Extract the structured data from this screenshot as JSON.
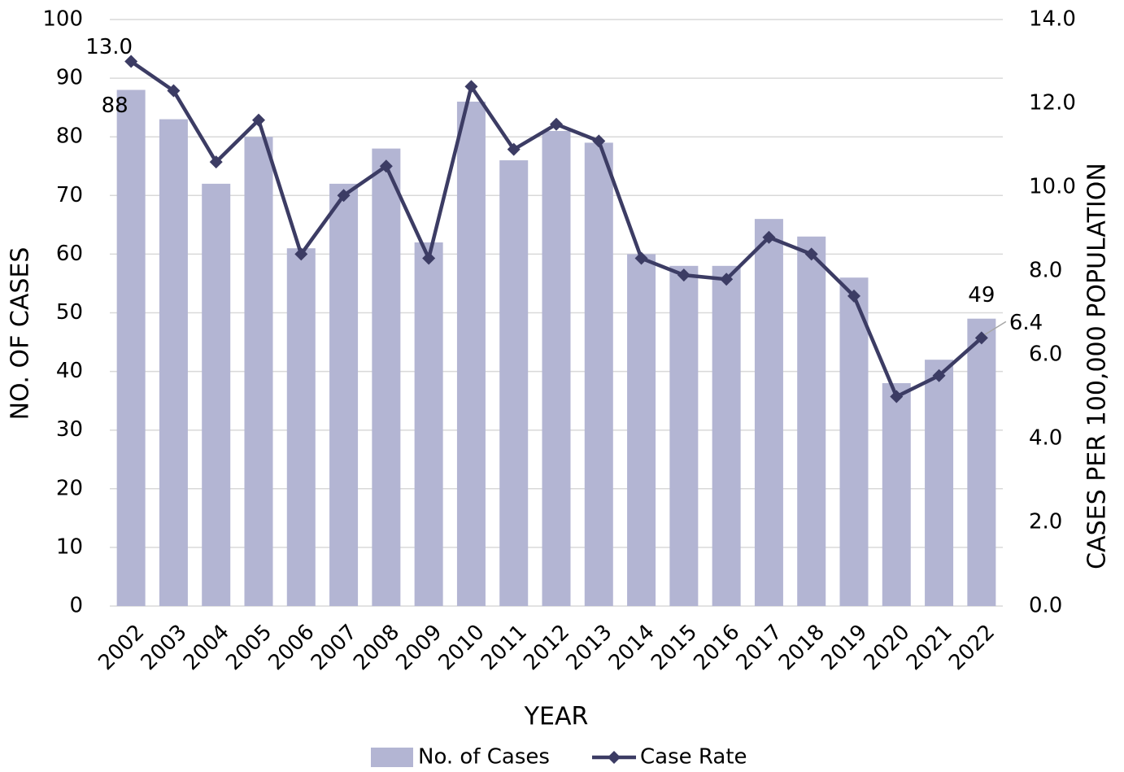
{
  "chart_data": {
    "type": "bar_line",
    "categories": [
      "2002",
      "2003",
      "2004",
      "2005",
      "2006",
      "2007",
      "2008",
      "2009",
      "2010",
      "2011",
      "2012",
      "2013",
      "2014",
      "2015",
      "2016",
      "2017",
      "2018",
      "2019",
      "2020",
      "2021",
      "2022"
    ],
    "series": [
      {
        "name": "No. of Cases",
        "type": "bar",
        "color": "#b3b5d3",
        "values": [
          88,
          83,
          72,
          80,
          61,
          72,
          78,
          62,
          86,
          76,
          81,
          79,
          60,
          58,
          58,
          66,
          63,
          56,
          38,
          42,
          49
        ],
        "value_labels": [
          "88",
          null,
          null,
          null,
          null,
          null,
          null,
          null,
          null,
          null,
          null,
          null,
          null,
          null,
          null,
          null,
          null,
          null,
          null,
          null,
          "49"
        ]
      },
      {
        "name": "Case Rate",
        "type": "line",
        "axis": "y2",
        "color": "#3c3c64",
        "values": [
          13.0,
          12.3,
          10.6,
          11.6,
          8.4,
          9.8,
          10.5,
          8.3,
          12.4,
          10.9,
          11.5,
          11.1,
          8.3,
          7.9,
          7.8,
          8.8,
          8.4,
          7.4,
          5.0,
          5.5,
          6.4
        ],
        "value_labels": [
          "13.0",
          null,
          null,
          null,
          null,
          null,
          null,
          null,
          null,
          null,
          null,
          null,
          null,
          null,
          null,
          null,
          null,
          null,
          null,
          null,
          "6.4"
        ]
      }
    ],
    "xlabel": "YEAR",
    "ylabel": "NO. OF CASES",
    "y2label": "CASES PER 100,000 POPULATION",
    "ylim": [
      0,
      100
    ],
    "yticks": [
      0,
      10,
      20,
      30,
      40,
      50,
      60,
      70,
      80,
      90,
      100
    ],
    "y2lim": [
      0,
      14
    ],
    "y2ticks": [
      {
        "value": 0,
        "label": "0.0"
      },
      {
        "value": 2,
        "label": "2.0"
      },
      {
        "value": 4,
        "label": "4.0"
      },
      {
        "value": 6,
        "label": "6.0"
      },
      {
        "value": 8,
        "label": "8.0"
      },
      {
        "value": 10,
        "label": "10.0"
      },
      {
        "value": 12,
        "label": "12.0"
      },
      {
        "value": 14,
        "label": "14.0"
      }
    ],
    "grid": true,
    "legend": "bottom"
  }
}
